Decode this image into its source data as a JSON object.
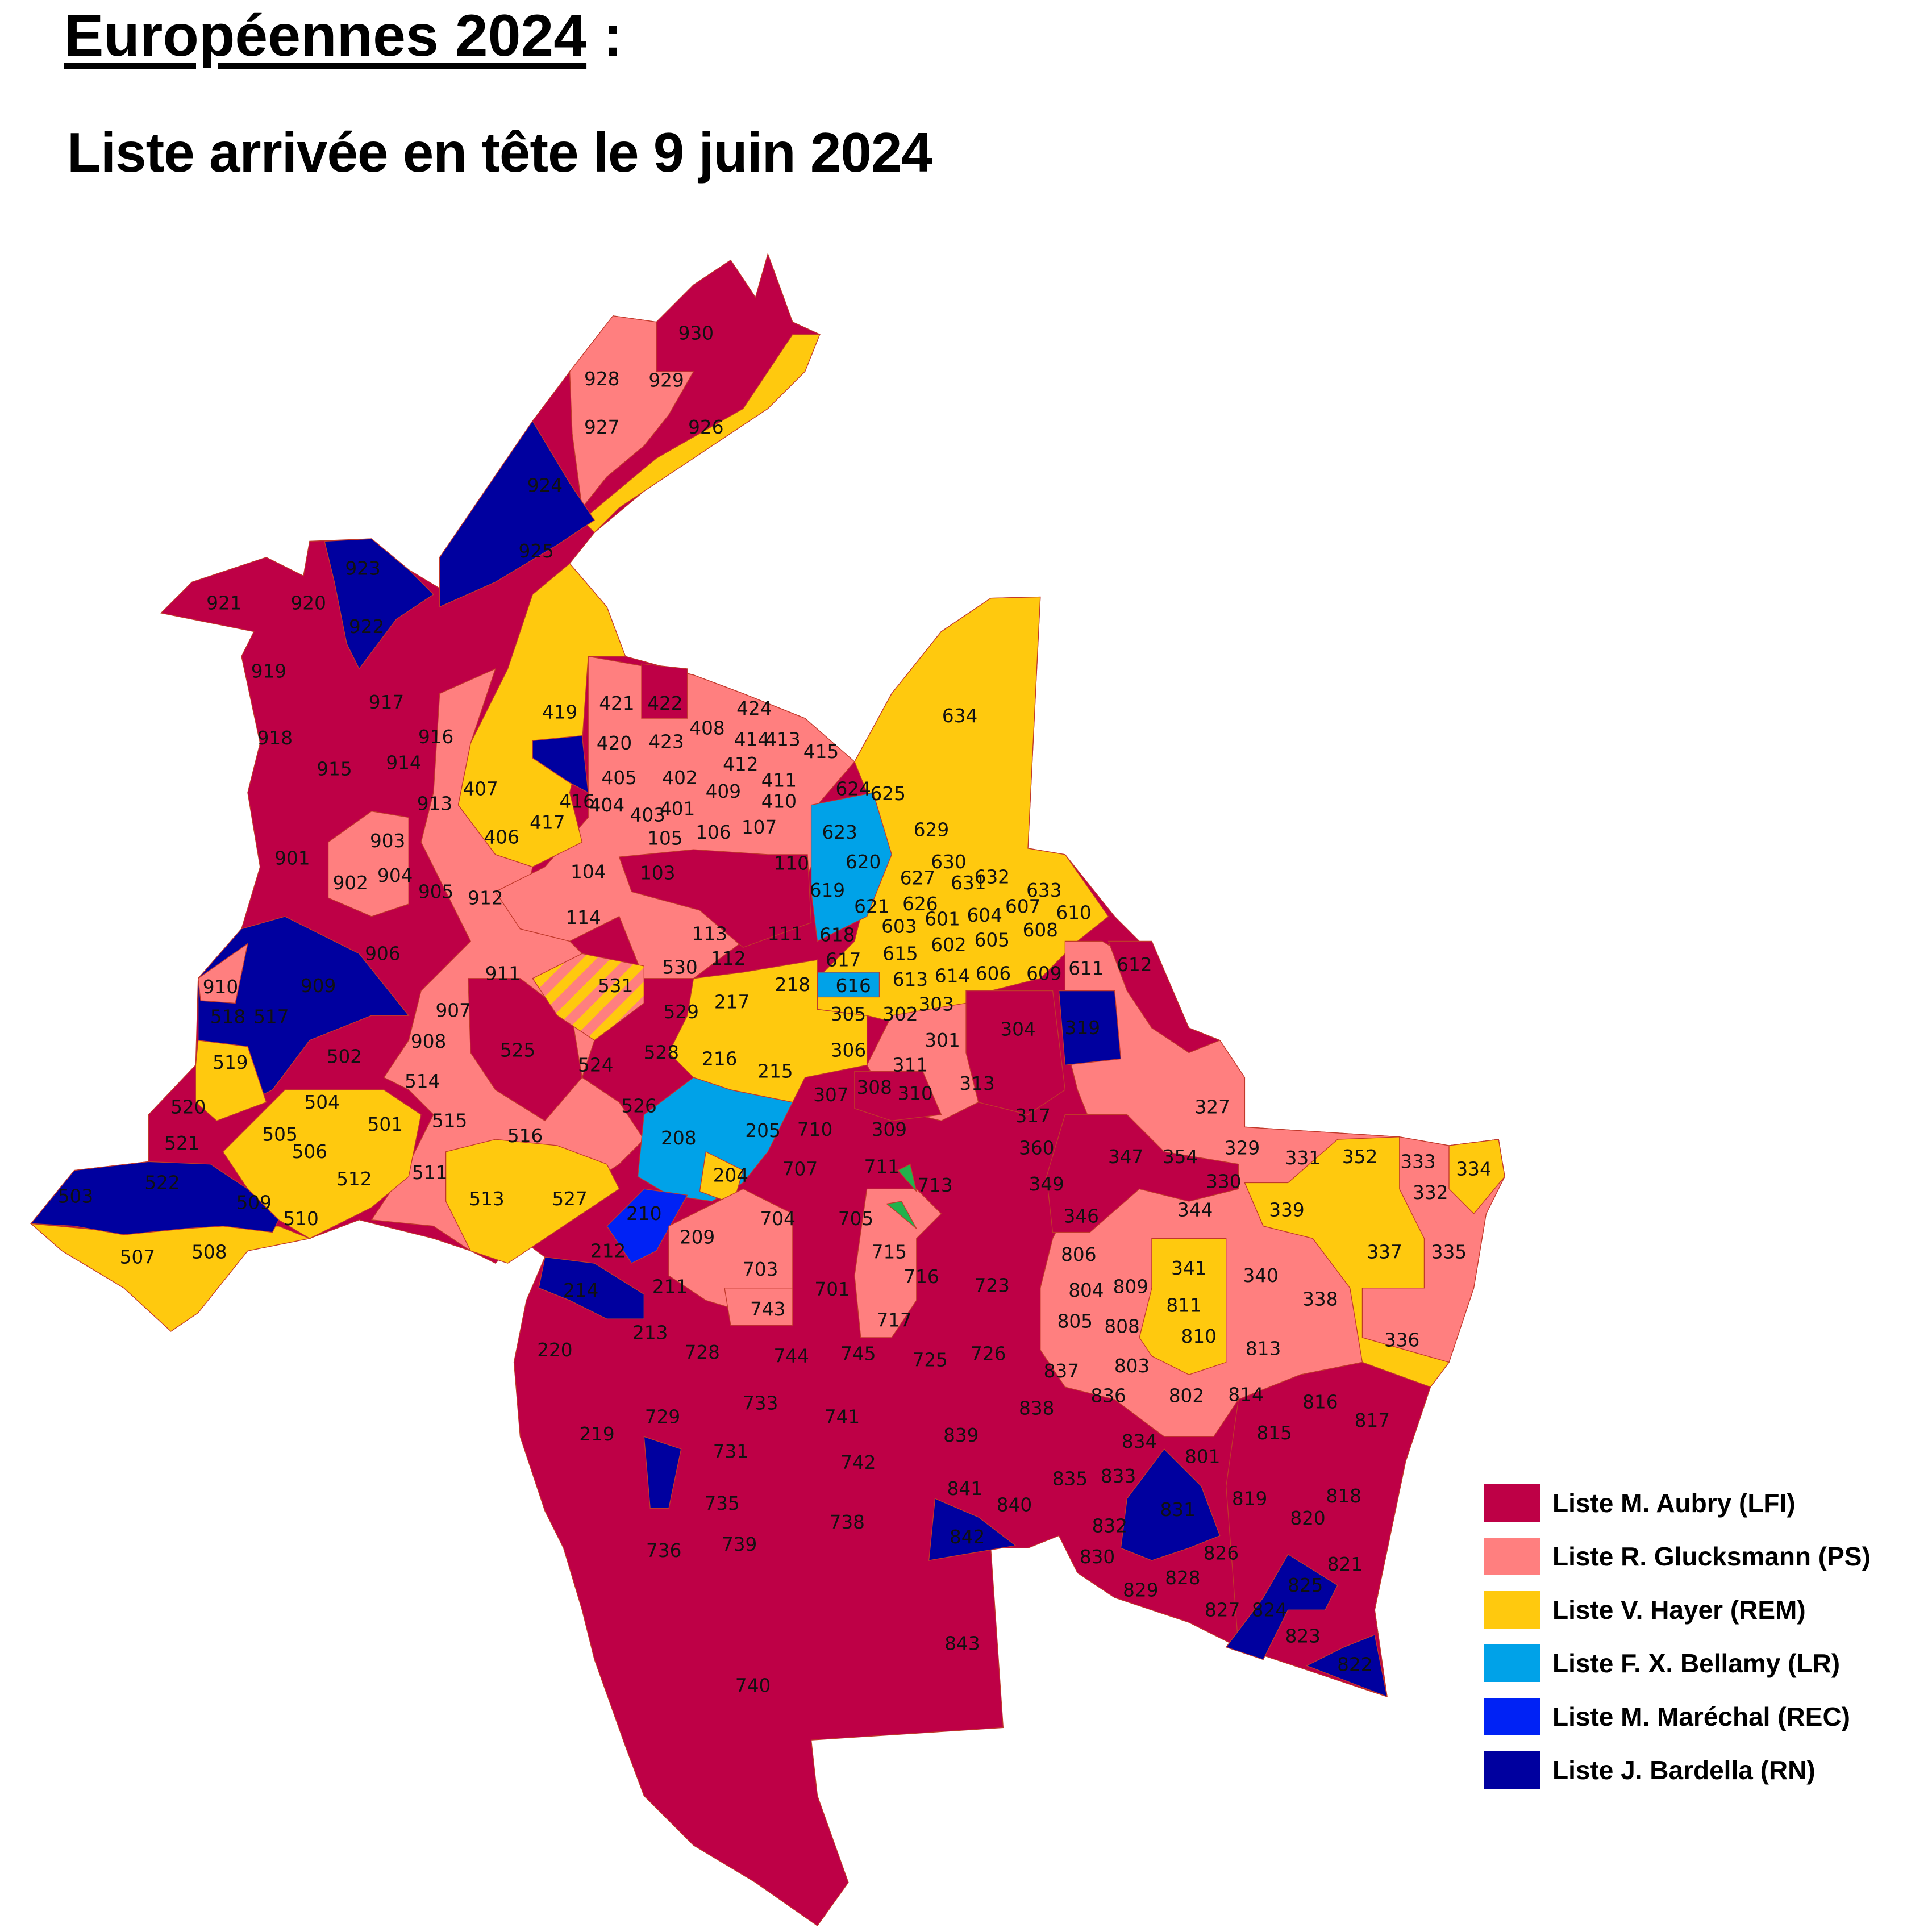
{
  "header": {
    "title": "Européennes 2024",
    "title_suffix": " :",
    "subtitle": "Liste arrivée en tête le 9 juin 2024"
  },
  "legend": [
    {
      "key": "LFI",
      "label": "Liste M. Aubry (LFI)",
      "color": "#BE0046"
    },
    {
      "key": "PS",
      "label": "Liste R. Glucksmann (PS)",
      "color": "#FF7F7F"
    },
    {
      "key": "REM",
      "label": "Liste V. Hayer (REM)",
      "color": "#FFC90E"
    },
    {
      "key": "LR",
      "label": "Liste F. X. Bellamy (LR)",
      "color": "#00A2E8"
    },
    {
      "key": "REC",
      "label": "Liste M. Maréchal (REC)",
      "color": "#0022F5"
    },
    {
      "key": "RN",
      "label": "Liste J. Bardella (RN)",
      "color": "#00009F"
    }
  ],
  "map": {
    "bureaux": [
      {
        "n": "930",
        "w": "LFI"
      },
      {
        "n": "928",
        "w": "PS"
      },
      {
        "n": "929",
        "w": "PS"
      },
      {
        "n": "927",
        "w": "PS"
      },
      {
        "n": "926",
        "w": "REM"
      },
      {
        "n": "924",
        "w": "RN"
      },
      {
        "n": "925",
        "w": "LFI"
      },
      {
        "n": "923",
        "w": "RN"
      },
      {
        "n": "921",
        "w": "LFI"
      },
      {
        "n": "920",
        "w": "LFI"
      },
      {
        "n": "922",
        "w": "RN"
      },
      {
        "n": "919",
        "w": "LFI"
      },
      {
        "n": "917",
        "w": "LFI"
      },
      {
        "n": "918",
        "w": "LFI"
      },
      {
        "n": "916",
        "w": "PS"
      },
      {
        "n": "915",
        "w": "LFI"
      },
      {
        "n": "914",
        "w": "LFI"
      },
      {
        "n": "913",
        "w": "LFI"
      },
      {
        "n": "903",
        "w": "PS"
      },
      {
        "n": "901",
        "w": "LFI"
      },
      {
        "n": "902",
        "w": "PS"
      },
      {
        "n": "904",
        "w": "LFI"
      },
      {
        "n": "905",
        "w": "PS"
      },
      {
        "n": "912",
        "w": "PS"
      },
      {
        "n": "906",
        "w": "LFI"
      },
      {
        "n": "911",
        "w": "PS"
      },
      {
        "n": "910",
        "w": "PS"
      },
      {
        "n": "909",
        "w": "RN"
      },
      {
        "n": "908",
        "w": "LFI"
      },
      {
        "n": "907",
        "w": "REM"
      },
      {
        "n": "518",
        "w": "RN"
      },
      {
        "n": "517",
        "w": "RN"
      },
      {
        "n": "519",
        "w": "REM"
      },
      {
        "n": "502",
        "w": "LFI"
      },
      {
        "n": "520",
        "w": "RN"
      },
      {
        "n": "521",
        "w": "LFI"
      },
      {
        "n": "504",
        "w": "REM"
      },
      {
        "n": "505",
        "w": "REM"
      },
      {
        "n": "501",
        "w": "REM"
      },
      {
        "n": "514",
        "w": "PS"
      },
      {
        "n": "515",
        "w": "PS"
      },
      {
        "n": "516",
        "w": "PS"
      },
      {
        "n": "525",
        "w": "LFI"
      },
      {
        "n": "524",
        "w": "PS"
      },
      {
        "n": "526",
        "w": "PS"
      },
      {
        "n": "528",
        "w": "REM"
      },
      {
        "n": "529",
        "w": "PS"
      },
      {
        "n": "531",
        "w": "PS"
      },
      {
        "n": "530",
        "w": "PS"
      },
      {
        "n": "503",
        "w": "RN"
      },
      {
        "n": "522",
        "w": "RN"
      },
      {
        "n": "509",
        "w": "RN"
      },
      {
        "n": "510",
        "w": "REM"
      },
      {
        "n": "512",
        "w": "REM"
      },
      {
        "n": "511",
        "w": "PS"
      },
      {
        "n": "513",
        "w": "REM"
      },
      {
        "n": "527",
        "w": "REM"
      },
      {
        "n": "507",
        "w": "REM"
      },
      {
        "n": "508",
        "w": "REM"
      },
      {
        "n": "506",
        "w": "REM"
      },
      {
        "n": "419",
        "w": "REM"
      },
      {
        "n": "421",
        "w": "PS"
      },
      {
        "n": "422",
        "w": "LFI"
      },
      {
        "n": "424",
        "w": "PS"
      },
      {
        "n": "415",
        "w": "PS"
      },
      {
        "n": "408",
        "w": "PS"
      },
      {
        "n": "414",
        "w": "PS"
      },
      {
        "n": "413",
        "w": "PS"
      },
      {
        "n": "420",
        "w": "PS"
      },
      {
        "n": "423",
        "w": "PS"
      },
      {
        "n": "405",
        "w": "PS"
      },
      {
        "n": "402",
        "w": "PS"
      },
      {
        "n": "412",
        "w": "PS"
      },
      {
        "n": "411",
        "w": "PS"
      },
      {
        "n": "416",
        "w": "PS"
      },
      {
        "n": "404",
        "w": "PS"
      },
      {
        "n": "403",
        "w": "PS"
      },
      {
        "n": "401",
        "w": "PS"
      },
      {
        "n": "409",
        "w": "PS"
      },
      {
        "n": "410",
        "w": "PS"
      },
      {
        "n": "407",
        "w": "REM"
      },
      {
        "n": "406",
        "w": "REM"
      },
      {
        "n": "417",
        "w": "REM"
      },
      {
        "n": "105",
        "w": "PS"
      },
      {
        "n": "106",
        "w": "PS"
      },
      {
        "n": "107",
        "w": "PS"
      },
      {
        "n": "104",
        "w": "PS"
      },
      {
        "n": "103",
        "w": "LFI"
      },
      {
        "n": "110",
        "w": "LFI"
      },
      {
        "n": "114",
        "w": "PS"
      },
      {
        "n": "112",
        "w": "PS"
      },
      {
        "n": "111",
        "w": "LFI"
      },
      {
        "n": "113",
        "w": "PS"
      },
      {
        "n": "217",
        "w": "REM"
      },
      {
        "n": "218",
        "w": "REM"
      },
      {
        "n": "216",
        "w": "REM"
      },
      {
        "n": "215",
        "w": "REM"
      },
      {
        "n": "205",
        "w": "LR"
      },
      {
        "n": "208",
        "w": "LR"
      },
      {
        "n": "204",
        "w": "REM"
      },
      {
        "n": "210",
        "w": "REC"
      },
      {
        "n": "209",
        "w": "PS"
      },
      {
        "n": "212",
        "w": "LFI"
      },
      {
        "n": "211",
        "w": "LFI"
      },
      {
        "n": "214",
        "w": "RN"
      },
      {
        "n": "213",
        "w": "LFI"
      },
      {
        "n": "220",
        "w": "LFI"
      },
      {
        "n": "219",
        "w": "LFI"
      },
      {
        "n": "634",
        "w": "REM"
      },
      {
        "n": "624",
        "w": "REM"
      },
      {
        "n": "625",
        "w": "LR"
      },
      {
        "n": "623",
        "w": "LR"
      },
      {
        "n": "619",
        "w": "LR"
      },
      {
        "n": "620",
        "w": "LR"
      },
      {
        "n": "621",
        "w": "REM"
      },
      {
        "n": "629",
        "w": "REM"
      },
      {
        "n": "630",
        "w": "REM"
      },
      {
        "n": "627",
        "w": "REM"
      },
      {
        "n": "626",
        "w": "REM"
      },
      {
        "n": "631",
        "w": "REM"
      },
      {
        "n": "632",
        "w": "REM"
      },
      {
        "n": "633",
        "w": "REM"
      },
      {
        "n": "603",
        "w": "REM"
      },
      {
        "n": "601",
        "w": "PS"
      },
      {
        "n": "607",
        "w": "REM"
      },
      {
        "n": "610",
        "w": "REM"
      },
      {
        "n": "604",
        "w": "LFI"
      },
      {
        "n": "602",
        "w": "LFI"
      },
      {
        "n": "605",
        "w": "REM"
      },
      {
        "n": "608",
        "w": "REM"
      },
      {
        "n": "618",
        "w": "LR"
      },
      {
        "n": "617",
        "w": "REM"
      },
      {
        "n": "615",
        "w": "REM"
      },
      {
        "n": "609",
        "w": "REM"
      },
      {
        "n": "611",
        "w": "PS"
      },
      {
        "n": "612",
        "w": "LFI"
      },
      {
        "n": "606",
        "w": "PS"
      },
      {
        "n": "614",
        "w": "REM"
      },
      {
        "n": "613",
        "w": "REM"
      },
      {
        "n": "616",
        "w": "LR"
      },
      {
        "n": "303",
        "w": "REM"
      },
      {
        "n": "302",
        "w": "REM"
      },
      {
        "n": "305",
        "w": "REM"
      },
      {
        "n": "301",
        "w": "PS"
      },
      {
        "n": "304",
        "w": "LFI"
      },
      {
        "n": "319",
        "w": "RN"
      },
      {
        "n": "306",
        "w": "REM"
      },
      {
        "n": "311",
        "w": "PS"
      },
      {
        "n": "313",
        "w": "PS"
      },
      {
        "n": "308",
        "w": "LFI"
      },
      {
        "n": "310",
        "w": "LFI"
      },
      {
        "n": "307",
        "w": "PS"
      },
      {
        "n": "309",
        "w": "PS"
      },
      {
        "n": "317",
        "w": "LFI"
      },
      {
        "n": "360",
        "w": "LFI"
      },
      {
        "n": "347",
        "w": "LFI"
      },
      {
        "n": "354",
        "w": "PS"
      },
      {
        "n": "327",
        "w": "PS"
      },
      {
        "n": "329",
        "w": "PS"
      },
      {
        "n": "331",
        "w": "PS"
      },
      {
        "n": "352",
        "w": "REM"
      },
      {
        "n": "333",
        "w": "PS"
      },
      {
        "n": "334",
        "w": "REM"
      },
      {
        "n": "330",
        "w": "LFI"
      },
      {
        "n": "332",
        "w": "PS"
      },
      {
        "n": "339",
        "w": "REM"
      },
      {
        "n": "344",
        "w": "PS"
      },
      {
        "n": "346",
        "w": "LFI"
      },
      {
        "n": "349",
        "w": "REM"
      },
      {
        "n": "337",
        "w": "REM"
      },
      {
        "n": "335",
        "w": "PS"
      },
      {
        "n": "340",
        "w": "PS"
      },
      {
        "n": "338",
        "w": "PS"
      },
      {
        "n": "336",
        "w": "REM"
      },
      {
        "n": "341",
        "w": "REM"
      },
      {
        "n": "710",
        "w": "LFI"
      },
      {
        "n": "707",
        "w": "LFI"
      },
      {
        "n": "711",
        "w": "LFI"
      },
      {
        "n": "713",
        "w": "PS"
      },
      {
        "n": "704",
        "w": "LFI"
      },
      {
        "n": "705",
        "w": "LFI"
      },
      {
        "n": "703",
        "w": "PS"
      },
      {
        "n": "715",
        "w": "PS"
      },
      {
        "n": "716",
        "w": "LFI"
      },
      {
        "n": "723",
        "w": "LFI"
      },
      {
        "n": "701",
        "w": "LFI"
      },
      {
        "n": "743",
        "w": "PS"
      },
      {
        "n": "717",
        "w": "PS"
      },
      {
        "n": "728",
        "w": "LFI"
      },
      {
        "n": "744",
        "w": "LFI"
      },
      {
        "n": "745",
        "w": "LFI"
      },
      {
        "n": "725",
        "w": "LFI"
      },
      {
        "n": "726",
        "w": "LFI"
      },
      {
        "n": "729",
        "w": "LFI"
      },
      {
        "n": "733",
        "w": "LFI"
      },
      {
        "n": "741",
        "w": "LFI"
      },
      {
        "n": "731",
        "w": "LFI"
      },
      {
        "n": "742",
        "w": "LFI"
      },
      {
        "n": "735",
        "w": "LFI"
      },
      {
        "n": "738",
        "w": "LFI"
      },
      {
        "n": "739",
        "w": "LFI"
      },
      {
        "n": "736",
        "w": "LFI"
      },
      {
        "n": "740",
        "w": "LFI"
      },
      {
        "n": "806",
        "w": "PS"
      },
      {
        "n": "804",
        "w": "PS"
      },
      {
        "n": "809",
        "w": "PS"
      },
      {
        "n": "805",
        "w": "PS"
      },
      {
        "n": "808",
        "w": "PS"
      },
      {
        "n": "803",
        "w": "PS"
      },
      {
        "n": "811",
        "w": "REM"
      },
      {
        "n": "810",
        "w": "REM"
      },
      {
        "n": "837",
        "w": "LFI"
      },
      {
        "n": "836",
        "w": "LFI"
      },
      {
        "n": "802",
        "w": "PS"
      },
      {
        "n": "814",
        "w": "PS"
      },
      {
        "n": "813",
        "w": "PS"
      },
      {
        "n": "816",
        "w": "LFI"
      },
      {
        "n": "815",
        "w": "LFI"
      },
      {
        "n": "817",
        "w": "LFI"
      },
      {
        "n": "838",
        "w": "LFI"
      },
      {
        "n": "839",
        "w": "LFI"
      },
      {
        "n": "834",
        "w": "LFI"
      },
      {
        "n": "801",
        "w": "LFI"
      },
      {
        "n": "833",
        "w": "LFI"
      },
      {
        "n": "835",
        "w": "LFI"
      },
      {
        "n": "841",
        "w": "LFI"
      },
      {
        "n": "840",
        "w": "LFI"
      },
      {
        "n": "831",
        "w": "RN"
      },
      {
        "n": "819",
        "w": "LFI"
      },
      {
        "n": "818",
        "w": "LFI"
      },
      {
        "n": "820",
        "w": "LFI"
      },
      {
        "n": "832",
        "w": "LFI"
      },
      {
        "n": "830",
        "w": "LFI"
      },
      {
        "n": "826",
        "w": "LFI"
      },
      {
        "n": "821",
        "w": "LFI"
      },
      {
        "n": "825",
        "w": "RN"
      },
      {
        "n": "842",
        "w": "RN"
      },
      {
        "n": "829",
        "w": "LFI"
      },
      {
        "n": "828",
        "w": "LFI"
      },
      {
        "n": "827",
        "w": "LFI"
      },
      {
        "n": "824",
        "w": "RN"
      },
      {
        "n": "823",
        "w": "LFI"
      },
      {
        "n": "822",
        "w": "RN"
      },
      {
        "n": "843",
        "w": "LFI"
      }
    ]
  }
}
